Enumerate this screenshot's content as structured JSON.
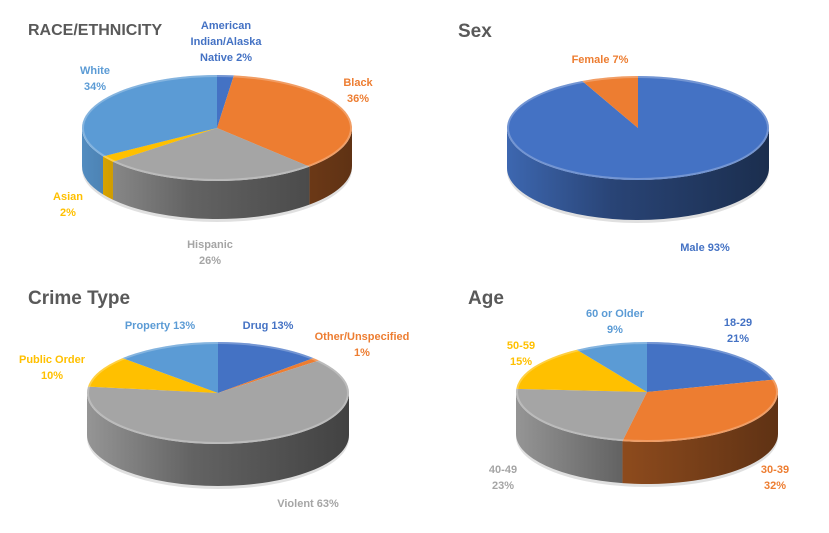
{
  "chart_data": [
    {
      "type": "pie",
      "title": "RACE/ETHNICITY",
      "slices": [
        {
          "label": "American Indian/Alaska Native",
          "value": 2,
          "label_text": "American\nIndian/Alaska\nNative 2%",
          "color": "#4472C4"
        },
        {
          "label": "Black",
          "value": 36,
          "label_text": "Black\n36%",
          "color": "#ED7D31"
        },
        {
          "label": "Hispanic",
          "value": 26,
          "label_text": "Hispanic\n26%",
          "color": "#A5A5A5"
        },
        {
          "label": "Asian",
          "value": 2,
          "label_text": "Asian\n2%",
          "color": "#FFC000"
        },
        {
          "label": "White",
          "value": 34,
          "label_text": "White\n34%",
          "color": "#5B9BD5"
        }
      ]
    },
    {
      "type": "pie",
      "title": "Sex",
      "slices": [
        {
          "label": "Male",
          "value": 93,
          "label_text": "Male 93%",
          "color": "#4472C4"
        },
        {
          "label": "Female",
          "value": 7,
          "label_text": "Female 7%",
          "color": "#ED7D31"
        }
      ]
    },
    {
      "type": "pie",
      "title": "Crime Type",
      "slices": [
        {
          "label": "Drug",
          "value": 13,
          "label_text": "Drug 13%",
          "color": "#4472C4"
        },
        {
          "label": "Other/Unspecified",
          "value": 1,
          "label_text": "Other/Unspecified\n1%",
          "color": "#ED7D31"
        },
        {
          "label": "Violent",
          "value": 63,
          "label_text": "Violent 63%",
          "color": "#A5A5A5"
        },
        {
          "label": "Public Order",
          "value": 10,
          "label_text": "Public Order\n10%",
          "color": "#FFC000"
        },
        {
          "label": "Property",
          "value": 13,
          "label_text": "Property 13%",
          "color": "#5B9BD5"
        }
      ]
    },
    {
      "type": "pie",
      "title": "Age",
      "slices": [
        {
          "label": "18-29",
          "value": 21,
          "label_text": "18-29\n21%",
          "color": "#4472C4"
        },
        {
          "label": "30-39",
          "value": 32,
          "label_text": "30-39\n32%",
          "color": "#ED7D31"
        },
        {
          "label": "40-49",
          "value": 23,
          "label_text": "40-49\n23%",
          "color": "#A5A5A5"
        },
        {
          "label": "50-59",
          "value": 15,
          "label_text": "50-59\n15%",
          "color": "#FFC000"
        },
        {
          "label": "60 or Older",
          "value": 9,
          "label_text": "60 or Older\n9%",
          "color": "#5B9BD5"
        }
      ]
    }
  ]
}
